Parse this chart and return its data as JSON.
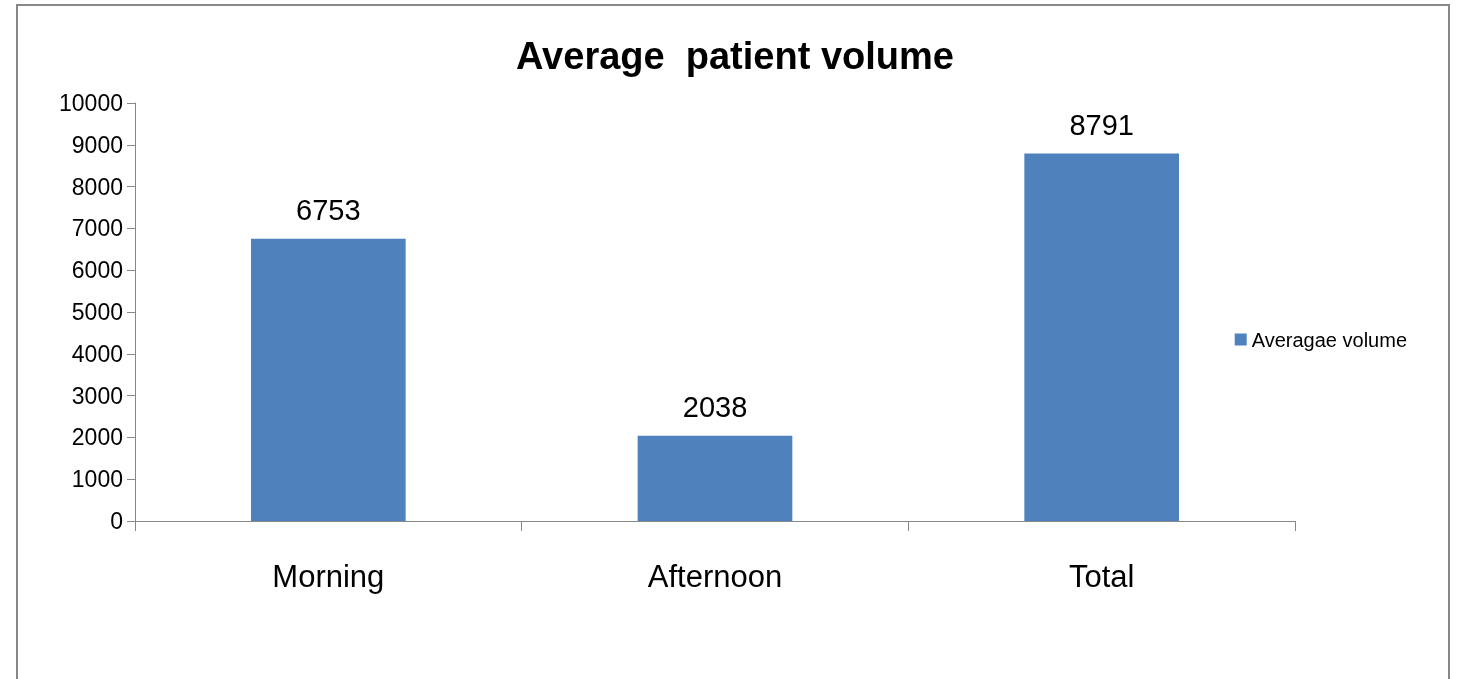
{
  "chart_data": {
    "type": "bar",
    "title": "Average  patient volume",
    "categories": [
      "Morning",
      "Afternoon",
      "Total"
    ],
    "series": [
      {
        "name": "Averagae volume",
        "color": "#4f81bd",
        "values": [
          6753,
          2038,
          8791
        ]
      }
    ],
    "ylim": [
      0,
      10000
    ],
    "yticks": [
      0,
      1000,
      2000,
      3000,
      4000,
      5000,
      6000,
      7000,
      8000,
      9000,
      10000
    ],
    "data_labels": true,
    "legend": "right"
  }
}
